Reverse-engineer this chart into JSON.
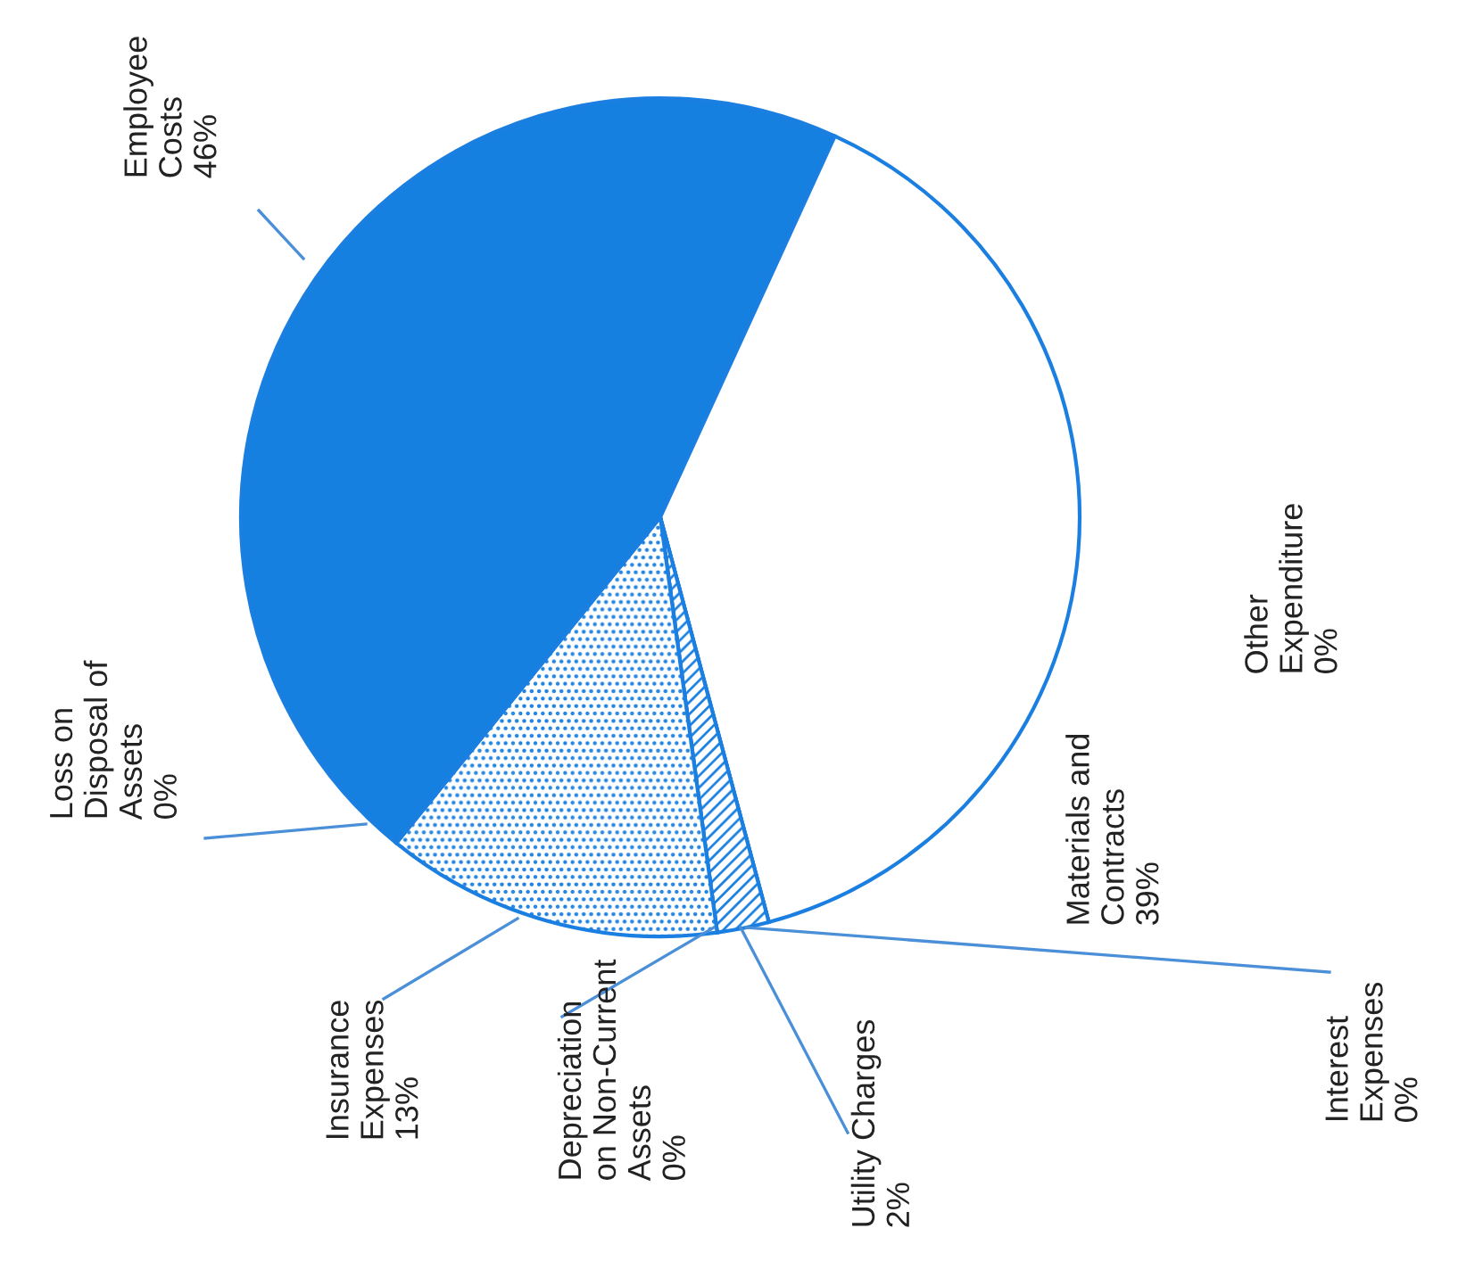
{
  "chart_data": {
    "type": "pie",
    "categories": [
      "Employee Costs",
      "Other Expenditure",
      "Materials and Contracts",
      "Interest Expenses",
      "Utility Charges",
      "Depreciation on Non-Current Assets",
      "Insurance Expenses",
      "Loss on Disposal of Assets"
    ],
    "values": [
      46,
      0,
      39,
      0,
      2,
      0,
      13,
      0
    ],
    "value_labels": [
      "46%",
      "0%",
      "39%",
      "0%",
      "2%",
      "0%",
      "13%",
      "0%"
    ],
    "colors": [
      "#1580e0",
      "#ffffff",
      "#ffffff",
      "#ffffff",
      "#1a7fe0",
      "#ffffff",
      "#1a7fe0",
      "#ffffff"
    ],
    "legend": false
  }
}
